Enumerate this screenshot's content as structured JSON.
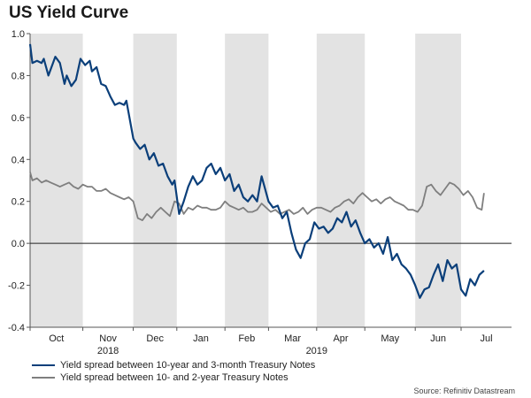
{
  "title": "US Yield Curve",
  "source": "Source: Refinitiv Datastream",
  "colors": {
    "primary": "#0b3f7a",
    "secondary": "#7f7f7f",
    "shade": "#e3e3e3",
    "zero_line": "#222222"
  },
  "chart_data": {
    "type": "line",
    "title": "US Yield Curve",
    "xlabel": "",
    "ylabel": "",
    "ylim": [
      -0.4,
      1.0
    ],
    "yticks": [
      -0.4,
      -0.2,
      0.0,
      0.2,
      0.4,
      0.6,
      0.8,
      1.0
    ],
    "ytick_labels": [
      "-0.4",
      "-0.2",
      "0.0",
      "0.2",
      "0.4",
      "0.6",
      "0.8",
      "1.0"
    ],
    "x_unit": "trading days from 1 Oct 2018",
    "xlim": [
      0,
      210
    ],
    "months": [
      {
        "label": "Oct",
        "start": 0,
        "end": 23,
        "shaded": true
      },
      {
        "label": "Nov",
        "start": 23,
        "end": 45,
        "shaded": false
      },
      {
        "label": "Dec",
        "start": 45,
        "end": 64,
        "shaded": true
      },
      {
        "label": "Jan",
        "start": 64,
        "end": 85,
        "shaded": false
      },
      {
        "label": "Feb",
        "start": 85,
        "end": 104,
        "shaded": true
      },
      {
        "label": "Mar",
        "start": 104,
        "end": 125,
        "shaded": false
      },
      {
        "label": "Apr",
        "start": 125,
        "end": 146,
        "shaded": true
      },
      {
        "label": "May",
        "start": 146,
        "end": 168,
        "shaded": false
      },
      {
        "label": "Jun",
        "start": 168,
        "end": 188,
        "shaded": true
      },
      {
        "label": "Jul",
        "start": 188,
        "end": 210,
        "shaded": false
      }
    ],
    "year_labels": [
      {
        "label": "2018",
        "x": 34
      },
      {
        "label": "2019",
        "x": 125
      }
    ],
    "zero_line": true,
    "series": [
      {
        "name": "Yield spread between 10-year and 3-month Treasury Notes",
        "color": "#0b3f7a",
        "x": [
          0,
          1,
          3,
          5,
          6,
          8,
          10,
          11,
          13,
          15,
          16,
          18,
          20,
          22,
          24,
          26,
          27,
          29,
          31,
          33,
          35,
          37,
          39,
          41,
          42,
          43,
          45,
          46,
          48,
          50,
          52,
          54,
          56,
          58,
          60,
          62,
          63,
          65,
          67,
          69,
          71,
          73,
          75,
          77,
          79,
          81,
          83,
          85,
          87,
          89,
          91,
          93,
          95,
          97,
          99,
          101,
          102,
          104,
          106,
          108,
          110,
          112,
          114,
          116,
          118,
          120,
          122,
          124,
          126,
          128,
          130,
          132,
          134,
          136,
          138,
          140,
          142,
          144,
          146,
          148,
          150,
          152,
          154,
          156,
          158,
          160,
          162,
          164,
          166,
          168,
          170,
          172,
          174,
          176,
          178,
          180,
          182,
          184,
          186,
          188,
          190,
          192,
          194,
          196,
          198
        ],
        "values": [
          0.95,
          0.86,
          0.87,
          0.86,
          0.88,
          0.8,
          0.86,
          0.89,
          0.86,
          0.76,
          0.8,
          0.75,
          0.78,
          0.88,
          0.85,
          0.87,
          0.82,
          0.84,
          0.76,
          0.75,
          0.7,
          0.66,
          0.67,
          0.66,
          0.68,
          0.62,
          0.5,
          0.48,
          0.45,
          0.47,
          0.4,
          0.43,
          0.37,
          0.38,
          0.32,
          0.28,
          0.3,
          0.14,
          0.2,
          0.27,
          0.32,
          0.28,
          0.3,
          0.36,
          0.38,
          0.33,
          0.36,
          0.3,
          0.33,
          0.25,
          0.28,
          0.22,
          0.2,
          0.23,
          0.2,
          0.32,
          0.28,
          0.2,
          0.17,
          0.18,
          0.12,
          0.15,
          0.05,
          -0.03,
          -0.07,
          0.0,
          0.02,
          0.1,
          0.07,
          0.08,
          0.05,
          0.07,
          0.12,
          0.1,
          0.15,
          0.08,
          0.11,
          0.05,
          0.0,
          0.02,
          -0.02,
          0.0,
          -0.05,
          0.03,
          -0.08,
          -0.05,
          -0.1,
          -0.12,
          -0.15,
          -0.2,
          -0.26,
          -0.22,
          -0.21,
          -0.15,
          -0.1,
          -0.18,
          -0.08,
          -0.12,
          -0.1,
          -0.22,
          -0.25,
          -0.17,
          -0.2,
          -0.15,
          -0.13
        ]
      },
      {
        "name": "Yield spread between 10- and 2-year Treasury Notes",
        "color": "#7f7f7f",
        "x": [
          0,
          1,
          3,
          5,
          7,
          9,
          11,
          13,
          15,
          17,
          19,
          21,
          23,
          25,
          27,
          29,
          31,
          33,
          35,
          37,
          39,
          41,
          43,
          45,
          47,
          49,
          51,
          53,
          55,
          57,
          59,
          61,
          63,
          65,
          67,
          69,
          71,
          73,
          75,
          77,
          79,
          81,
          83,
          85,
          87,
          89,
          91,
          93,
          95,
          97,
          99,
          101,
          103,
          105,
          107,
          109,
          111,
          113,
          115,
          117,
          119,
          121,
          123,
          125,
          127,
          129,
          131,
          133,
          135,
          137,
          139,
          141,
          143,
          145,
          147,
          149,
          151,
          153,
          155,
          157,
          159,
          161,
          163,
          165,
          167,
          169,
          171,
          173,
          175,
          177,
          179,
          181,
          183,
          185,
          187,
          189,
          191,
          193,
          195,
          197,
          198
        ],
        "values": [
          0.34,
          0.3,
          0.31,
          0.29,
          0.3,
          0.29,
          0.28,
          0.27,
          0.28,
          0.29,
          0.27,
          0.26,
          0.28,
          0.27,
          0.27,
          0.25,
          0.25,
          0.26,
          0.24,
          0.23,
          0.22,
          0.21,
          0.22,
          0.2,
          0.12,
          0.11,
          0.14,
          0.12,
          0.15,
          0.17,
          0.15,
          0.13,
          0.2,
          0.19,
          0.14,
          0.17,
          0.16,
          0.18,
          0.17,
          0.17,
          0.16,
          0.16,
          0.17,
          0.2,
          0.18,
          0.17,
          0.16,
          0.17,
          0.15,
          0.15,
          0.16,
          0.19,
          0.17,
          0.15,
          0.16,
          0.14,
          0.15,
          0.16,
          0.14,
          0.15,
          0.17,
          0.14,
          0.16,
          0.17,
          0.17,
          0.16,
          0.15,
          0.17,
          0.18,
          0.2,
          0.21,
          0.19,
          0.22,
          0.24,
          0.22,
          0.2,
          0.21,
          0.19,
          0.21,
          0.22,
          0.2,
          0.19,
          0.18,
          0.16,
          0.16,
          0.15,
          0.18,
          0.27,
          0.28,
          0.25,
          0.23,
          0.26,
          0.29,
          0.28,
          0.26,
          0.23,
          0.25,
          0.22,
          0.17,
          0.16,
          0.24
        ]
      }
    ],
    "legend_position": "bottom-left"
  }
}
